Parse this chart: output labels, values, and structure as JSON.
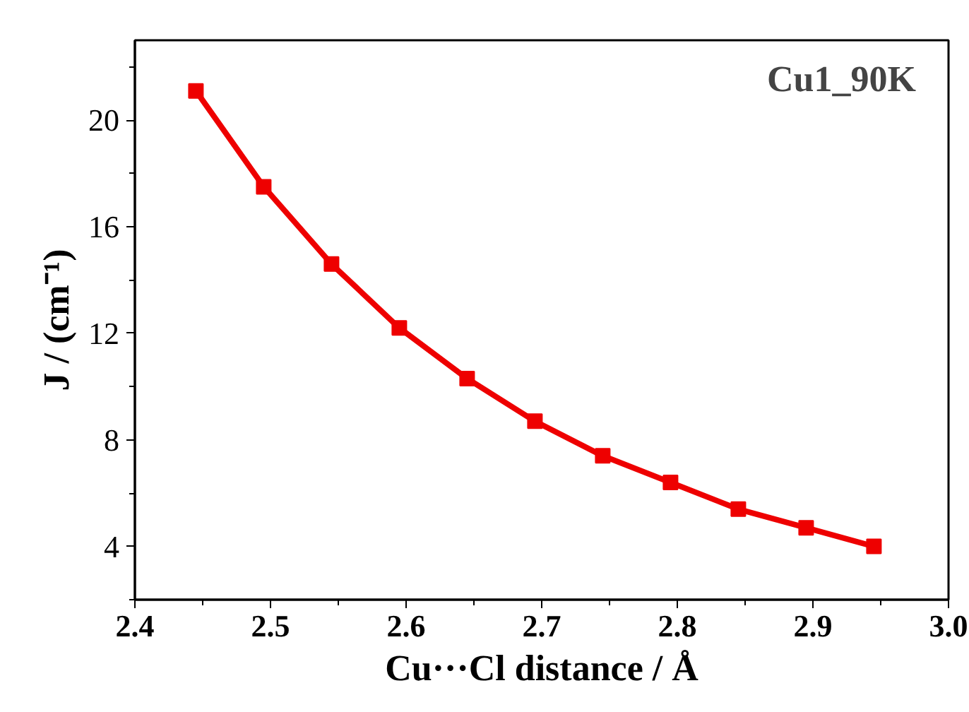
{
  "chart_data": {
    "type": "line",
    "xlabel": "Cu···Cl distance / Å",
    "ylabel": "J / (cm⁻¹)",
    "annotations": [
      "Cu1_90K"
    ],
    "x": [
      2.445,
      2.495,
      2.545,
      2.595,
      2.645,
      2.695,
      2.745,
      2.795,
      2.845,
      2.895,
      2.945
    ],
    "series": [
      {
        "color": "#ee0000",
        "values": [
          21.1,
          17.5,
          14.6,
          12.2,
          10.3,
          8.7,
          7.4,
          6.4,
          5.4,
          4.7,
          4.0
        ]
      }
    ],
    "xlim": [
      2.4,
      3.0
    ],
    "ylim": [
      2,
      23
    ],
    "xticks": [
      2.4,
      2.5,
      2.6,
      2.7,
      2.8,
      2.9,
      {
        "value": 3.0,
        "label": "3.0"
      }
    ],
    "yticks": [
      4,
      8,
      12,
      16,
      20
    ],
    "marker": "square",
    "line_style": "solid",
    "grid": false
  }
}
